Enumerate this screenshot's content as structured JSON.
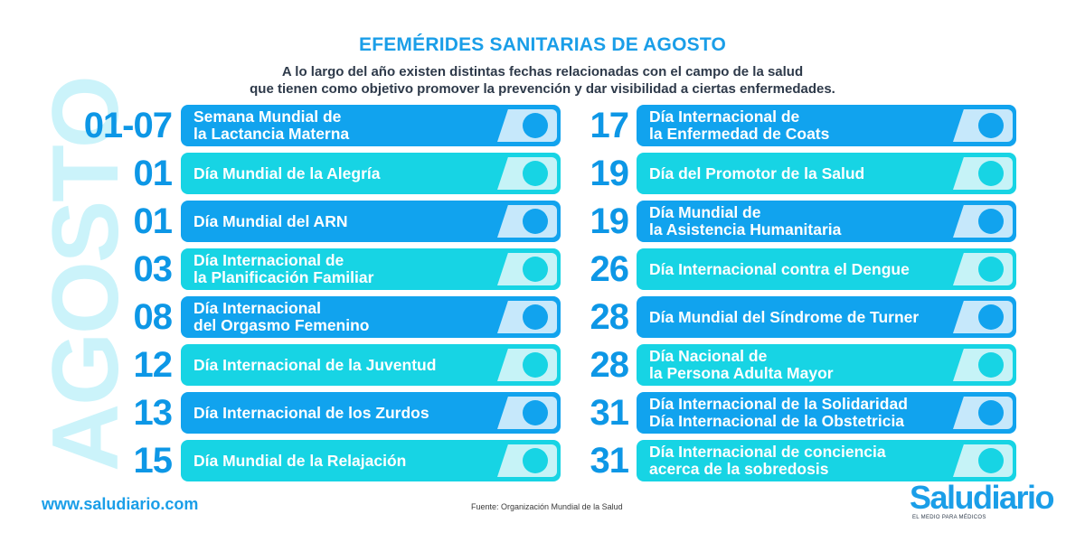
{
  "header": {
    "title": "EFEMÉRIDES SANITARIAS DE AGOSTO",
    "subtitle_line1": "A lo largo del año existen distintas fechas relacionadas con el campo de la salud",
    "subtitle_line2": "que tienen como objetivo promover la prevención y dar visibilidad a ciertas enfermedades."
  },
  "side_label": "AGOSTO",
  "left_column": [
    {
      "date": "01-07",
      "line1": "Semana Mundial de",
      "line2": "la Lactancia Materna",
      "color": "blue"
    },
    {
      "date": "01",
      "line1": "Día Mundial de la Alegría",
      "line2": "",
      "color": "cyan"
    },
    {
      "date": "01",
      "line1": "Día Mundial del ARN",
      "line2": "",
      "color": "blue"
    },
    {
      "date": "03",
      "line1": "Día Internacional de",
      "line2": "la Planificación Familiar",
      "color": "cyan"
    },
    {
      "date": "08",
      "line1": "Día Internacional",
      "line2": "del Orgasmo Femenino",
      "color": "blue"
    },
    {
      "date": "12",
      "line1": "Día Internacional de la Juventud",
      "line2": "",
      "color": "cyan"
    },
    {
      "date": "13",
      "line1": "Día Internacional de los Zurdos",
      "line2": "",
      "color": "blue"
    },
    {
      "date": "15",
      "line1": "Día Mundial de la Relajación",
      "line2": "",
      "color": "cyan"
    }
  ],
  "right_column": [
    {
      "date": "17",
      "line1": "Día Internacional de",
      "line2": "la Enfermedad de Coats",
      "color": "blue"
    },
    {
      "date": "19",
      "line1": "Día del Promotor de la Salud",
      "line2": "",
      "color": "cyan"
    },
    {
      "date": "19",
      "line1": "Día Mundial de",
      "line2": "la Asistencia Humanitaria",
      "color": "blue"
    },
    {
      "date": "26",
      "line1": "Día Internacional contra el Dengue",
      "line2": "",
      "color": "cyan"
    },
    {
      "date": "28",
      "line1": "Día Mundial del Síndrome de Turner",
      "line2": "",
      "color": "blue"
    },
    {
      "date": "28",
      "line1": "Día Nacional de",
      "line2": "la Persona Adulta Mayor",
      "color": "cyan"
    },
    {
      "date": "31",
      "line1": "Día Internacional de la Solidaridad",
      "line2": "Día Internacional de la Obstetricia",
      "color": "blue"
    },
    {
      "date": "31",
      "line1": "Día Internacional de conciencia",
      "line2": "acerca de la sobredosis",
      "color": "cyan"
    }
  ],
  "footer": {
    "url": "www.saludiario.com",
    "source": "Fuente: Organización Mundial de la Salud",
    "brand": "Saludiario",
    "brand_tagline": "EL MEDIO PARA MÉDICOS"
  },
  "colors": {
    "blue": "#11a3ee",
    "cyan": "#17d4e4",
    "date": "#0d97e6",
    "side_label": "#cbf3fa"
  }
}
